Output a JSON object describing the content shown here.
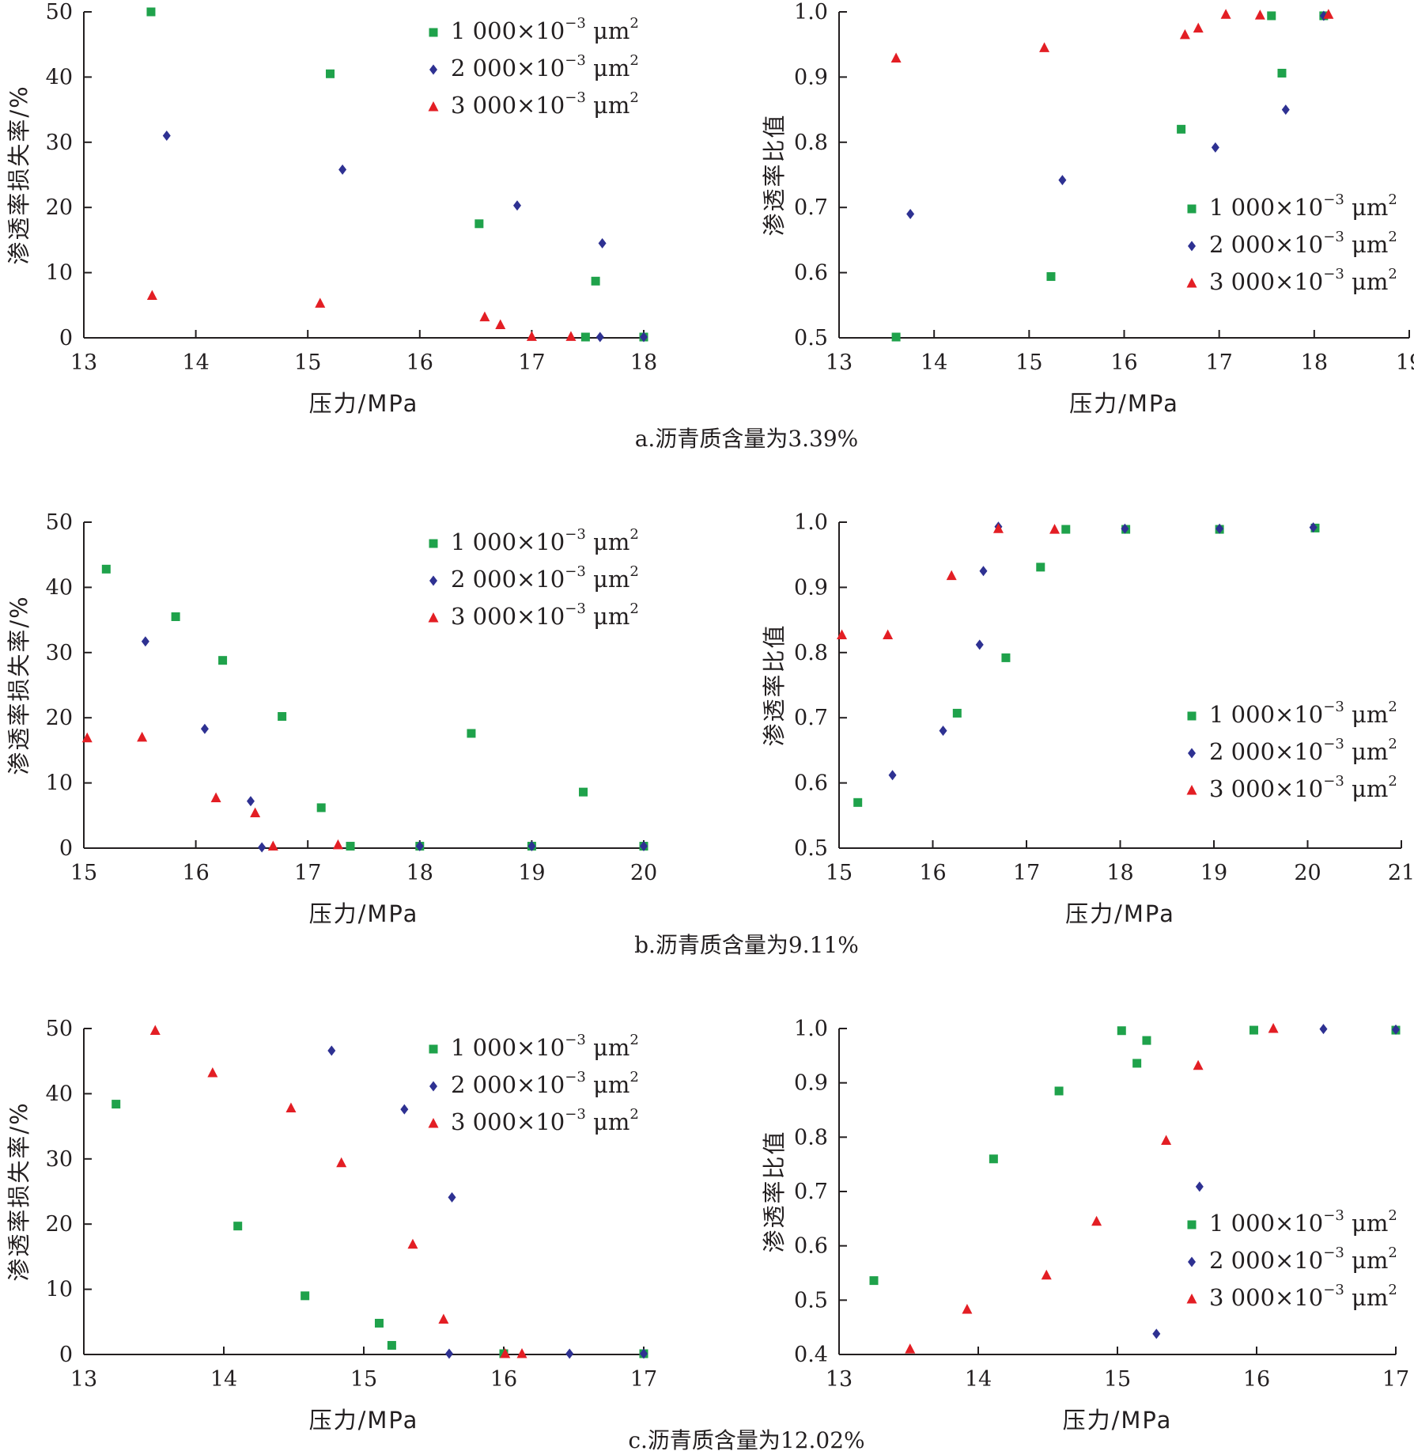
{
  "colors": {
    "s1": "#1fa24b",
    "s2": "#2e3192",
    "s3": "#e31e24",
    "axis": "#231f20"
  },
  "legend_labels": {
    "s1": {
      "main": "1 000×10",
      "sup1": "−3",
      "unit": " μm",
      "sup2": "2"
    },
    "s2": {
      "main": "2 000×10",
      "sup1": "−3",
      "unit": " μm",
      "sup2": "2"
    },
    "s3": {
      "main": "3 000×10",
      "sup1": "−3",
      "unit": " μm",
      "sup2": "2"
    }
  },
  "captions": [
    "a.沥青质含量为3.39%",
    "b.沥青质含量为9.11%",
    "c.沥青质含量为12.02%"
  ],
  "chart_data": [
    {
      "type": "scatter",
      "panel": "a-left",
      "xlabel": "压力/MPa",
      "ylabel": "渗透率损失率/%",
      "xlim": [
        13,
        18
      ],
      "ylim": [
        0,
        50
      ],
      "xticks": [
        "13",
        "14",
        "15",
        "16",
        "17",
        "18"
      ],
      "yticks": [
        "0",
        "10",
        "20",
        "30",
        "40",
        "50"
      ],
      "legend_position": "top-right",
      "series": [
        {
          "name": "s1",
          "marker": "square",
          "points": [
            [
              13.6,
              50
            ],
            [
              15.2,
              40.5
            ],
            [
              16.53,
              17.5
            ],
            [
              17.57,
              8.7
            ],
            [
              17.48,
              0
            ],
            [
              18,
              0
            ]
          ]
        },
        {
          "name": "s2",
          "marker": "diamond",
          "points": [
            [
              13.74,
              31
            ],
            [
              15.31,
              25.8
            ],
            [
              16.87,
              20.3
            ],
            [
              17.63,
              14.5
            ],
            [
              17.61,
              -0.1
            ],
            [
              18,
              -0.1
            ]
          ]
        },
        {
          "name": "s3",
          "marker": "triangle",
          "points": [
            [
              13.61,
              6.5
            ],
            [
              15.11,
              5.3
            ],
            [
              16.58,
              3.2
            ],
            [
              16.72,
              2
            ],
            [
              17,
              0.2
            ],
            [
              17.35,
              0.2
            ]
          ]
        }
      ]
    },
    {
      "type": "scatter",
      "panel": "a-right",
      "xlabel": "压力/MPa",
      "ylabel": "渗透率比值",
      "xlim": [
        13,
        19
      ],
      "ylim": [
        0.5,
        1.0
      ],
      "xticks": [
        "13",
        "14",
        "15",
        "16",
        "17",
        "18",
        "19"
      ],
      "yticks": [
        "0.5",
        "0.6",
        "0.7",
        "0.8",
        "0.9",
        "1.0"
      ],
      "legend_position": "lower-right",
      "series": [
        {
          "name": "s1",
          "marker": "square",
          "points": [
            [
              13.6,
              0.501
            ],
            [
              15.23,
              0.594
            ],
            [
              16.6,
              0.82
            ],
            [
              17.66,
              0.906
            ],
            [
              17.55,
              0.994
            ],
            [
              18.1,
              0.994
            ]
          ]
        },
        {
          "name": "s2",
          "marker": "diamond",
          "points": [
            [
              13.75,
              0.69
            ],
            [
              15.35,
              0.742
            ],
            [
              16.96,
              0.792
            ],
            [
              17.7,
              0.85
            ],
            [
              18.1,
              0.994
            ]
          ]
        },
        {
          "name": "s3",
          "marker": "triangle",
          "points": [
            [
              13.6,
              0.929
            ],
            [
              15.16,
              0.945
            ],
            [
              16.64,
              0.965
            ],
            [
              16.78,
              0.975
            ],
            [
              17.07,
              0.996
            ],
            [
              17.43,
              0.995
            ],
            [
              18.15,
              0.996
            ]
          ]
        }
      ]
    },
    {
      "type": "scatter",
      "panel": "b-left",
      "xlabel": "压力/MPa",
      "ylabel": "渗透率损失率/%",
      "xlim": [
        15,
        20
      ],
      "ylim": [
        0,
        50
      ],
      "xticks": [
        "15",
        "16",
        "17",
        "18",
        "19",
        "20"
      ],
      "yticks": [
        "0",
        "10",
        "20",
        "30",
        "40",
        "50"
      ],
      "legend_position": "top-right",
      "series": [
        {
          "name": "s1",
          "marker": "square",
          "points": [
            [
              15.2,
              42.8
            ],
            [
              15.82,
              35.5
            ],
            [
              16.24,
              28.8
            ],
            [
              16.77,
              20.2
            ],
            [
              18.46,
              17.6
            ],
            [
              19.46,
              8.6
            ],
            [
              17.12,
              6.2
            ],
            [
              17.38,
              0.3
            ],
            [
              18,
              0.3
            ],
            [
              19,
              0.3
            ],
            [
              20,
              0.3
            ]
          ]
        },
        {
          "name": "s2",
          "marker": "diamond",
          "points": [
            [
              15.55,
              31.7
            ],
            [
              16.08,
              18.3
            ],
            [
              16.49,
              7.2
            ],
            [
              16.59,
              0
            ],
            [
              18,
              0.3
            ],
            [
              19,
              0.3
            ],
            [
              20,
              0.3
            ]
          ]
        },
        {
          "name": "s3",
          "marker": "triangle",
          "points": [
            [
              15.03,
              16.9
            ],
            [
              15.52,
              17
            ],
            [
              16.18,
              7.7
            ],
            [
              16.53,
              5.4
            ],
            [
              16.69,
              0.3
            ],
            [
              17.27,
              0.5
            ]
          ]
        }
      ]
    },
    {
      "type": "scatter",
      "panel": "b-right",
      "xlabel": "压力/MPa",
      "ylabel": "渗透率比值",
      "xlim": [
        15,
        21
      ],
      "ylim": [
        0.5,
        1.0
      ],
      "xticks": [
        "15",
        "16",
        "17",
        "18",
        "19",
        "20",
        "21"
      ],
      "yticks": [
        "0.5",
        "0.6",
        "0.7",
        "0.8",
        "0.9",
        "1.0"
      ],
      "legend_position": "lower-right",
      "series": [
        {
          "name": "s1",
          "marker": "square",
          "points": [
            [
              15.2,
              0.57
            ],
            [
              16.26,
              0.707
            ],
            [
              16.78,
              0.792
            ],
            [
              17.15,
              0.931
            ],
            [
              17.42,
              0.989
            ],
            [
              18.06,
              0.989
            ],
            [
              19.06,
              0.989
            ],
            [
              20.08,
              0.991
            ]
          ]
        },
        {
          "name": "s2",
          "marker": "diamond",
          "points": [
            [
              15.57,
              0.612
            ],
            [
              16.11,
              0.68
            ],
            [
              16.5,
              0.812
            ],
            [
              16.54,
              0.925
            ],
            [
              16.7,
              0.993
            ],
            [
              18.05,
              0.99
            ],
            [
              19.06,
              0.99
            ],
            [
              20.06,
              0.992
            ]
          ]
        },
        {
          "name": "s3",
          "marker": "triangle",
          "points": [
            [
              15.03,
              0.827
            ],
            [
              15.52,
              0.827
            ],
            [
              16.2,
              0.918
            ],
            [
              16.7,
              0.99
            ],
            [
              17.3,
              0.989
            ]
          ]
        }
      ]
    },
    {
      "type": "scatter",
      "panel": "c-left",
      "xlabel": "压力/MPa",
      "ylabel": "渗透率损失率/%",
      "xlim": [
        13,
        17
      ],
      "ylim": [
        0,
        50
      ],
      "xticks": [
        "13",
        "14",
        "15",
        "16",
        "17"
      ],
      "yticks": [
        "0",
        "10",
        "20",
        "30",
        "40",
        "50"
      ],
      "legend_position": "top-right",
      "series": [
        {
          "name": "s1",
          "marker": "square",
          "points": [
            [
              13.23,
              38.4
            ],
            [
              14.1,
              19.7
            ],
            [
              14.58,
              9
            ],
            [
              15.11,
              4.8
            ],
            [
              15.2,
              1.4
            ],
            [
              16,
              0.1
            ],
            [
              17,
              0.1
            ]
          ]
        },
        {
          "name": "s2",
          "marker": "diamond",
          "points": [
            [
              14.77,
              46.6
            ],
            [
              15.29,
              37.6
            ],
            [
              15.63,
              24.1
            ],
            [
              15.61,
              0
            ],
            [
              16.47,
              -0.2
            ],
            [
              17,
              0
            ]
          ]
        },
        {
          "name": "s3",
          "marker": "triangle",
          "points": [
            [
              13.51,
              49.7
            ],
            [
              13.92,
              43.2
            ],
            [
              14.48,
              37.8
            ],
            [
              14.84,
              29.4
            ],
            [
              15.35,
              16.9
            ],
            [
              15.57,
              5.4
            ],
            [
              16.01,
              0.1
            ],
            [
              16.13,
              -0.1
            ]
          ]
        }
      ]
    },
    {
      "type": "scatter",
      "panel": "c-right",
      "xlabel": "压力/MPa",
      "ylabel": "渗透率比值",
      "xlim": [
        13,
        17
      ],
      "ylim": [
        0.4,
        1.0
      ],
      "xticks": [
        "13",
        "14",
        "15",
        "16",
        "17"
      ],
      "yticks": [
        "0.4",
        "0.5",
        "0.6",
        "0.7",
        "0.8",
        "0.9",
        "1.0"
      ],
      "legend_position": "lower-right",
      "series": [
        {
          "name": "s1",
          "marker": "square",
          "points": [
            [
              13.25,
              0.536
            ],
            [
              14.11,
              0.76
            ],
            [
              14.58,
              0.885
            ],
            [
              15.03,
              0.996
            ],
            [
              15.14,
              0.936
            ],
            [
              15.21,
              0.978
            ],
            [
              15.98,
              0.997
            ],
            [
              17,
              0.997
            ]
          ]
        },
        {
          "name": "s2",
          "marker": "diamond",
          "points": [
            [
              15.28,
              0.438
            ],
            [
              15.59,
              0.709
            ],
            [
              16.48,
              0.999
            ],
            [
              17,
              0.998
            ]
          ]
        },
        {
          "name": "s3",
          "marker": "triangle",
          "points": [
            [
              13.51,
              0.41
            ],
            [
              13.92,
              0.483
            ],
            [
              14.49,
              0.546
            ],
            [
              14.85,
              0.645
            ],
            [
              15.35,
              0.794
            ],
            [
              15.58,
              0.932
            ],
            [
              16.12,
              1.0
            ]
          ]
        }
      ]
    }
  ]
}
